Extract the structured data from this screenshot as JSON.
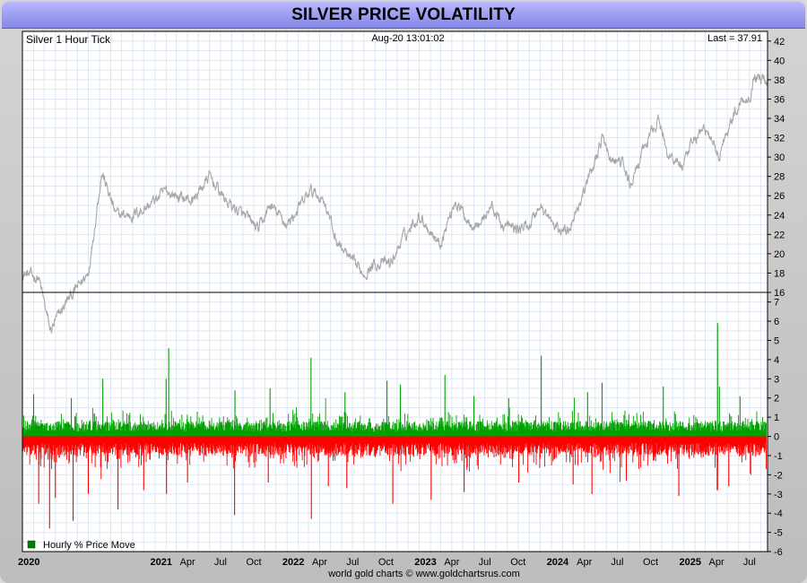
{
  "title": "SILVER PRICE VOLATILITY",
  "header": {
    "left": "Silver 1 Hour Tick",
    "center": "Aug-20  13:01:02",
    "right": "Last = 37.91"
  },
  "footer": "world gold charts © www.goldchartsrus.com",
  "legend": "Hourly % Price Move",
  "colors": {
    "price_line": "#a8a8a8",
    "positive": "#00a000",
    "negative": "#ff0000",
    "grid": "#dde7f4",
    "title_bar": "#9c9cf0"
  },
  "chart_data": [
    {
      "type": "line",
      "name": "price",
      "x_range": [
        "2020-01-01",
        "2025-08-20"
      ],
      "ylim": [
        16,
        43
      ],
      "y_ticks": [
        16,
        18,
        20,
        22,
        24,
        26,
        28,
        30,
        32,
        34,
        36,
        38,
        40,
        42
      ],
      "grid": true,
      "x": [
        "2020-01-01",
        "2020-02-15",
        "2020-03-18",
        "2020-05-01",
        "2020-07-01",
        "2020-08-07",
        "2020-09-15",
        "2020-11-01",
        "2020-12-15",
        "2021-02-01",
        "2021-02-28",
        "2021-04-15",
        "2021-06-01",
        "2021-07-15",
        "2021-09-01",
        "2021-10-15",
        "2021-11-15",
        "2022-01-01",
        "2022-03-08",
        "2022-04-15",
        "2022-05-15",
        "2022-07-01",
        "2022-08-01",
        "2022-09-01",
        "2022-10-15",
        "2022-11-15",
        "2023-01-01",
        "2023-02-28",
        "2023-04-10",
        "2023-05-15",
        "2023-06-15",
        "2023-07-20",
        "2023-08-15",
        "2023-10-01",
        "2023-11-01",
        "2023-12-01",
        "2024-01-15",
        "2024-02-15",
        "2024-03-15",
        "2024-04-15",
        "2024-05-20",
        "2024-06-15",
        "2024-07-15",
        "2024-08-05",
        "2024-09-15",
        "2024-10-22",
        "2024-11-15",
        "2024-12-30",
        "2025-02-01",
        "2025-02-28",
        "2025-04-08",
        "2025-05-01",
        "2025-06-10",
        "2025-07-01",
        "2025-07-15",
        "2025-08-20"
      ],
      "y": [
        18,
        17.5,
        12,
        15,
        18,
        28.5,
        24,
        24,
        25,
        26.5,
        26,
        25.5,
        28,
        25.5,
        24,
        22.5,
        25,
        23,
        26.5,
        25.5,
        21.5,
        19,
        18,
        19,
        19,
        21.5,
        24,
        21,
        25.5,
        23.5,
        23,
        25,
        23,
        22.5,
        23,
        25,
        22.5,
        22.5,
        25,
        28,
        32,
        29.5,
        29.5,
        27,
        31,
        34,
        30.5,
        29,
        32,
        33,
        30,
        33,
        36,
        36.2,
        38.5,
        37.91
      ]
    },
    {
      "type": "bar",
      "name": "Hourly % Price Move",
      "x_range": [
        "2020-01-01",
        "2025-08-20"
      ],
      "ylim": [
        -6,
        7.5
      ],
      "y_ticks": [
        -6,
        -5,
        -4,
        -3,
        -2,
        -1,
        0,
        1,
        2,
        3,
        4,
        5,
        6,
        7
      ],
      "spikes": {
        "positive": [
          {
            "x": "2020-02-01",
            "y": 2.2
          },
          {
            "x": "2020-05-15",
            "y": 2.0
          },
          {
            "x": "2020-08-10",
            "y": 3.0
          },
          {
            "x": "2021-02-01",
            "y": 3.0
          },
          {
            "x": "2021-02-08",
            "y": 4.6
          },
          {
            "x": "2021-08-10",
            "y": 2.4
          },
          {
            "x": "2021-11-15",
            "y": 2.5
          },
          {
            "x": "2022-03-08",
            "y": 4.1
          },
          {
            "x": "2022-06-10",
            "y": 2.3
          },
          {
            "x": "2022-10-04",
            "y": 2.9
          },
          {
            "x": "2022-11-10",
            "y": 2.7
          },
          {
            "x": "2023-03-13",
            "y": 3.2
          },
          {
            "x": "2023-06-01",
            "y": 2.1
          },
          {
            "x": "2023-09-05",
            "y": 2.0
          },
          {
            "x": "2023-12-04",
            "y": 4.2
          },
          {
            "x": "2024-04-10",
            "y": 2.3
          },
          {
            "x": "2024-05-20",
            "y": 2.8
          },
          {
            "x": "2024-11-05",
            "y": 2.6
          },
          {
            "x": "2025-04-04",
            "y": 5.9
          },
          {
            "x": "2025-04-09",
            "y": 2.6
          },
          {
            "x": "2025-06-05",
            "y": 2.1
          }
        ],
        "negative": [
          {
            "x": "2020-02-15",
            "y": -3.5
          },
          {
            "x": "2020-03-16",
            "y": -4.8
          },
          {
            "x": "2020-04-01",
            "y": -3.2
          },
          {
            "x": "2020-05-20",
            "y": -4.4
          },
          {
            "x": "2020-07-01",
            "y": -3.0
          },
          {
            "x": "2020-09-21",
            "y": -3.8
          },
          {
            "x": "2020-12-01",
            "y": -2.8
          },
          {
            "x": "2021-02-02",
            "y": -3.0
          },
          {
            "x": "2021-04-01",
            "y": -2.4
          },
          {
            "x": "2021-08-09",
            "y": -4.1
          },
          {
            "x": "2021-11-10",
            "y": -2.4
          },
          {
            "x": "2022-04-25",
            "y": -2.6
          },
          {
            "x": "2022-03-09",
            "y": -4.3
          },
          {
            "x": "2022-06-15",
            "y": -2.7
          },
          {
            "x": "2022-10-20",
            "y": -3.5
          },
          {
            "x": "2023-02-03",
            "y": -3.3
          },
          {
            "x": "2023-05-05",
            "y": -2.9
          },
          {
            "x": "2023-10-03",
            "y": -2.4
          },
          {
            "x": "2024-03-01",
            "y": -2.5
          },
          {
            "x": "2024-04-22",
            "y": -3.0
          },
          {
            "x": "2024-07-26",
            "y": -2.3
          },
          {
            "x": "2024-12-18",
            "y": -3.1
          },
          {
            "x": "2025-04-03",
            "y": -2.8
          },
          {
            "x": "2025-04-04",
            "y": -2.8
          },
          {
            "x": "2025-05-05",
            "y": -2.6
          }
        ]
      },
      "typical_amplitude": {
        "positive": 0.7,
        "negative": -0.9
      }
    }
  ],
  "x_labels": [
    {
      "text": "2020",
      "date": "2020-01-01",
      "bold": true
    },
    {
      "text": "2021",
      "date": "2021-01-01",
      "bold": true
    },
    {
      "text": "Apr",
      "date": "2021-04-01"
    },
    {
      "text": "Jul",
      "date": "2021-07-01"
    },
    {
      "text": "Oct",
      "date": "2021-10-01"
    },
    {
      "text": "2022",
      "date": "2022-01-01",
      "bold": true
    },
    {
      "text": "Apr",
      "date": "2022-04-01"
    },
    {
      "text": "Jul",
      "date": "2022-07-01"
    },
    {
      "text": "Oct",
      "date": "2022-10-01"
    },
    {
      "text": "2023",
      "date": "2023-01-01",
      "bold": true
    },
    {
      "text": "Apr",
      "date": "2023-04-01"
    },
    {
      "text": "Jul",
      "date": "2023-07-01"
    },
    {
      "text": "Oct",
      "date": "2023-10-01"
    },
    {
      "text": "2024",
      "date": "2024-01-01",
      "bold": true
    },
    {
      "text": "Apr",
      "date": "2024-04-01"
    },
    {
      "text": "Jul",
      "date": "2024-07-01"
    },
    {
      "text": "Oct",
      "date": "2024-10-01"
    },
    {
      "text": "2025",
      "date": "2025-01-01",
      "bold": true
    },
    {
      "text": "Apr",
      "date": "2025-04-01"
    },
    {
      "text": "Jul",
      "date": "2025-07-01"
    }
  ]
}
